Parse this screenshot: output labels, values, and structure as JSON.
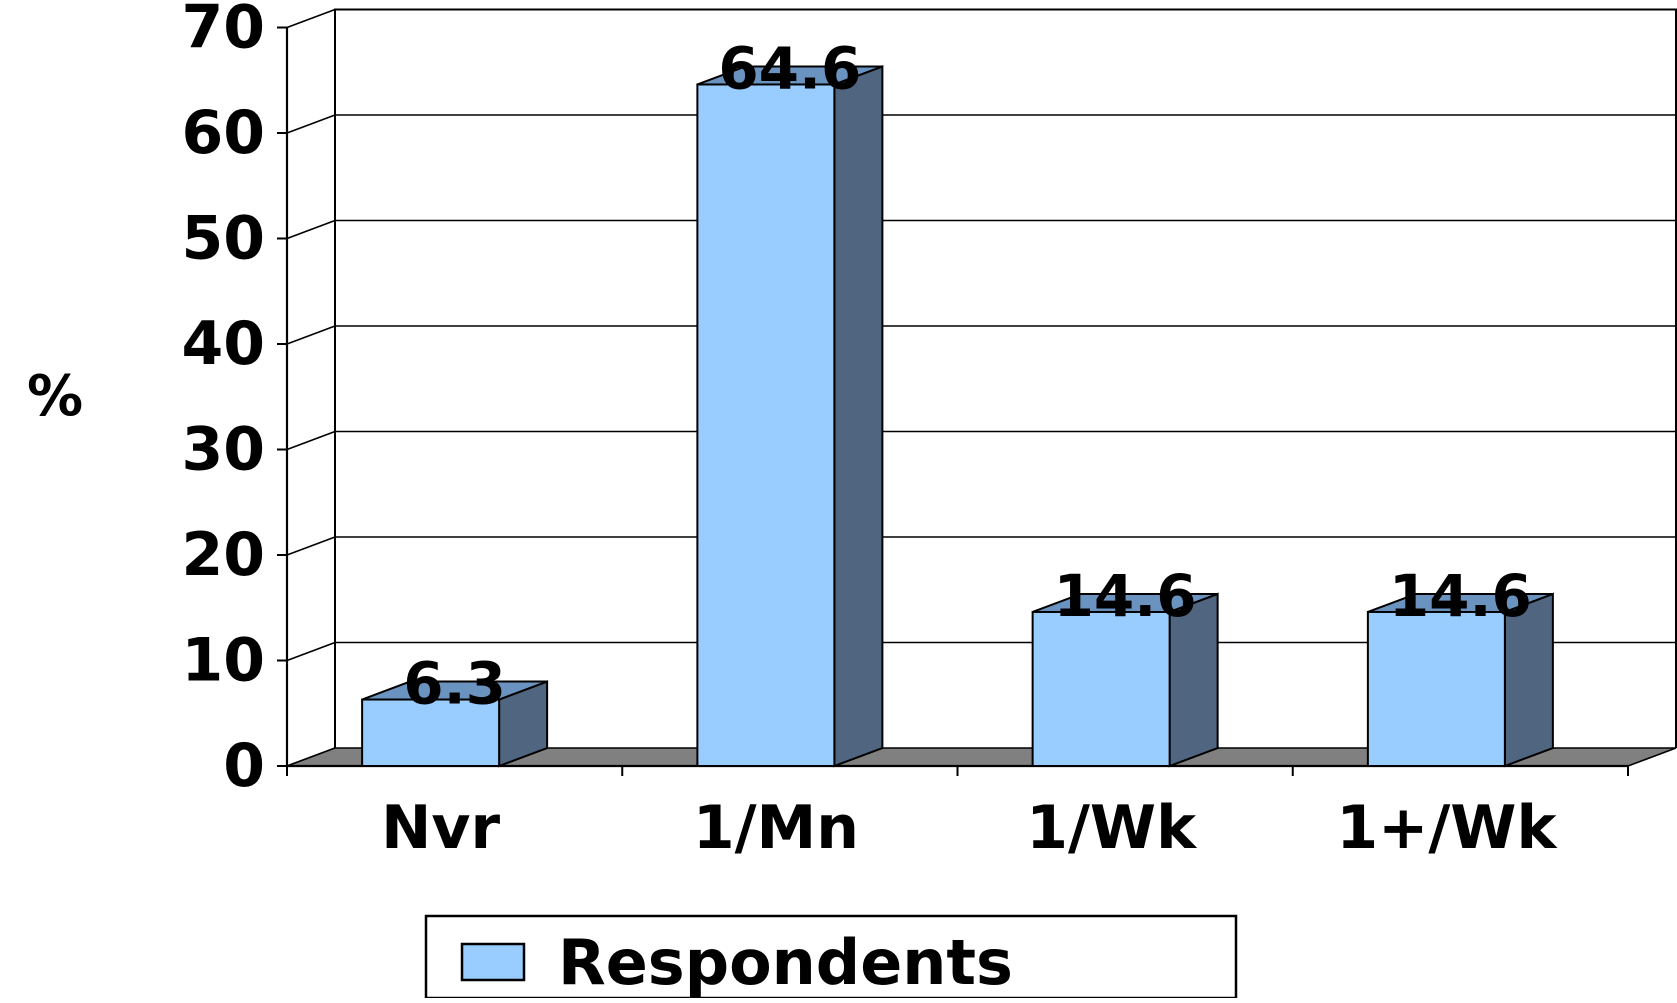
{
  "chart_data": {
    "type": "bar",
    "title": "",
    "xlabel": "",
    "ylabel": "%",
    "categories": [
      "Nvr",
      "1/Mn",
      "1/Wk",
      "1+/Wk"
    ],
    "series": [
      {
        "name": "Respondents",
        "values": [
          6.3,
          64.6,
          14.6,
          14.6
        ],
        "value_labels": [
          "6.3",
          "64.6",
          "14.6",
          "14.6"
        ]
      }
    ],
    "ylim": [
      0,
      70
    ],
    "yticks": [
      "0",
      "10",
      "20",
      "30",
      "40",
      "50",
      "60",
      "70"
    ],
    "grid": true,
    "legend": "bottom",
    "style": "3d-column"
  },
  "colors": {
    "bar_front": "#99CCFF",
    "bar_side": "#4F6580",
    "bar_top": "#6A93C0",
    "floor": "#808080",
    "grid": "#000000"
  }
}
